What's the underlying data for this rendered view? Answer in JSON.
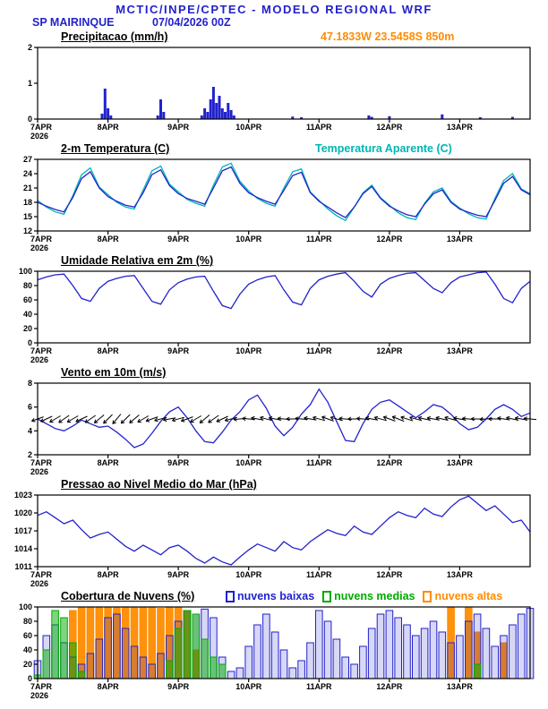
{
  "header": {
    "title": "MCTIC/INPE/CPTEC - MODELO REGIONAL WRF",
    "station": "SP MAIRINQUE",
    "run": "07/04/2026 00Z",
    "location": "47.1833W 23.5458S 850m"
  },
  "colors": {
    "blue": "#2222cc",
    "cyan": "#00b5b5",
    "green": "#00aa00",
    "orange": "#ff8c00",
    "black": "#000000"
  },
  "x_axis": {
    "range_hours": [
      0,
      168
    ],
    "tick_hours": [
      0,
      24,
      48,
      72,
      96,
      120,
      144
    ],
    "tick_labels": [
      "7APR",
      "8APR",
      "9APR",
      "10APR",
      "11APR",
      "12APR",
      "13APR"
    ],
    "year_label": "2026"
  },
  "chart_data": [
    {
      "type": "bar",
      "title": "Precipitacao (mm/h)",
      "ylabel": "mm/h",
      "ylim": [
        0,
        2
      ],
      "yticks": [
        0,
        1,
        2
      ],
      "series": [
        {
          "name": "precipitacao",
          "color": "blue",
          "points": [
            [
              22,
              0.15
            ],
            [
              23,
              0.85
            ],
            [
              24,
              0.3
            ],
            [
              25,
              0.1
            ],
            [
              41,
              0.1
            ],
            [
              42,
              0.55
            ],
            [
              43,
              0.2
            ],
            [
              56,
              0.1
            ],
            [
              57,
              0.3
            ],
            [
              58,
              0.2
            ],
            [
              59,
              0.55
            ],
            [
              60,
              0.9
            ],
            [
              61,
              0.45
            ],
            [
              62,
              0.65
            ],
            [
              63,
              0.3
            ],
            [
              64,
              0.2
            ],
            [
              65,
              0.45
            ],
            [
              66,
              0.25
            ],
            [
              67,
              0.1
            ],
            [
              87,
              0.07
            ],
            [
              90,
              0.05
            ],
            [
              113,
              0.1
            ],
            [
              114,
              0.06
            ],
            [
              120,
              0.08
            ],
            [
              138,
              0.13
            ],
            [
              151,
              0.05
            ],
            [
              162,
              0.06
            ]
          ]
        }
      ]
    },
    {
      "type": "line",
      "title": "2-m Temperatura (C)",
      "extra_label": "Temperatura Aparente (C)",
      "ylim": [
        12,
        27
      ],
      "yticks": [
        12,
        15,
        18,
        21,
        24,
        27
      ],
      "x_step": 3,
      "series": [
        {
          "name": "temperatura-aparente",
          "color": "cyan",
          "values": [
            18.4,
            17.0,
            16.0,
            15.5,
            19.4,
            23.8,
            25.2,
            21.2,
            19.6,
            18.0,
            17.0,
            16.6,
            20.6,
            24.6,
            25.6,
            21.8,
            20.2,
            18.6,
            17.8,
            17.2,
            21.6,
            25.4,
            26.2,
            22.4,
            20.4,
            18.8,
            17.8,
            17.2,
            21.0,
            24.4,
            25.0,
            20.2,
            18.4,
            16.6,
            15.2,
            14.2,
            17.0,
            20.0,
            21.6,
            19.0,
            17.4,
            15.8,
            14.8,
            14.4,
            17.8,
            20.2,
            21.0,
            18.2,
            16.8,
            15.6,
            14.8,
            14.5,
            18.8,
            22.6,
            24.0,
            20.8,
            19.8
          ]
        },
        {
          "name": "temperatura-2m",
          "color": "blue",
          "values": [
            18.0,
            17.2,
            16.5,
            16.0,
            19.0,
            23.0,
            24.4,
            21.0,
            19.2,
            18.2,
            17.4,
            17.0,
            20.0,
            23.8,
            24.8,
            21.5,
            19.8,
            18.8,
            18.2,
            17.6,
            21.0,
            24.6,
            25.4,
            22.0,
            20.0,
            19.0,
            18.2,
            17.6,
            20.5,
            23.6,
            24.3,
            20.0,
            18.2,
            17.0,
            15.8,
            14.8,
            17.0,
            19.8,
            21.3,
            18.8,
            17.2,
            16.2,
            15.4,
            15.0,
            17.6,
            19.8,
            20.6,
            18.0,
            16.6,
            15.9,
            15.3,
            15.0,
            18.4,
            22.0,
            23.4,
            20.6,
            19.6
          ]
        }
      ]
    },
    {
      "type": "line",
      "title": "Umidade Relativa em 2m (%)",
      "ylim": [
        0,
        100
      ],
      "yticks": [
        0,
        20,
        40,
        60,
        80,
        100
      ],
      "x_step": 3,
      "series": [
        {
          "name": "umidade-relativa",
          "color": "blue",
          "values": [
            88,
            92,
            95,
            96,
            80,
            62,
            58,
            76,
            86,
            90,
            93,
            94,
            76,
            58,
            54,
            74,
            84,
            89,
            92,
            93,
            72,
            52,
            48,
            68,
            82,
            88,
            92,
            94,
            74,
            57,
            53,
            76,
            88,
            93,
            96,
            98,
            86,
            72,
            64,
            82,
            90,
            94,
            97,
            98,
            87,
            76,
            70,
            84,
            92,
            95,
            98,
            99,
            82,
            62,
            56,
            76,
            86
          ]
        }
      ]
    },
    {
      "type": "line",
      "title": "Vento em 10m (m/s)",
      "ylim": [
        2,
        8
      ],
      "yticks": [
        2,
        4,
        6,
        8
      ],
      "x_step": 3,
      "series": [
        {
          "name": "vento-10m",
          "color": "blue",
          "values": [
            5.0,
            4.6,
            4.2,
            4.0,
            4.4,
            4.9,
            4.6,
            4.3,
            4.4,
            3.9,
            3.3,
            2.6,
            2.9,
            3.8,
            4.8,
            5.6,
            6.0,
            5.1,
            4.0,
            3.1,
            3.0,
            3.9,
            4.9,
            5.6,
            6.6,
            7.0,
            5.9,
            4.4,
            3.6,
            4.3,
            5.4,
            6.2,
            7.5,
            6.4,
            4.8,
            3.2,
            3.1,
            4.6,
            5.8,
            6.4,
            6.6,
            6.1,
            5.6,
            5.1,
            5.6,
            6.2,
            6.0,
            5.4,
            4.6,
            4.1,
            4.3,
            5.0,
            5.8,
            6.2,
            5.8,
            5.2,
            5.5
          ]
        }
      ],
      "barbs": {
        "name": "direcao-vento",
        "y": 5,
        "step": 3,
        "angles_deg": [
          200,
          205,
          210,
          215,
          210,
          205,
          215,
          220,
          225,
          230,
          225,
          220,
          210,
          200,
          195,
          190,
          195,
          200,
          210,
          220,
          215,
          205,
          195,
          185,
          175,
          170,
          165,
          170,
          175,
          180,
          175,
          170,
          165,
          160,
          165,
          175,
          180,
          175,
          170,
          165,
          160,
          158,
          162,
          165,
          168,
          170,
          168,
          165,
          170,
          175,
          180,
          185,
          180,
          172,
          168,
          170,
          175
        ]
      }
    },
    {
      "type": "line",
      "title": "Pressao ao Nivel Medio do Mar (hPa)",
      "ylim": [
        1011,
        1023
      ],
      "yticks": [
        1011,
        1014,
        1017,
        1020,
        1023
      ],
      "x_step": 3,
      "series": [
        {
          "name": "pressao-nivel-mar",
          "color": "blue",
          "values": [
            1019.6,
            1020.2,
            1019.2,
            1018.2,
            1018.8,
            1017.2,
            1015.8,
            1016.4,
            1016.8,
            1015.6,
            1014.4,
            1013.6,
            1014.6,
            1013.8,
            1013.0,
            1014.2,
            1014.6,
            1013.6,
            1012.4,
            1011.6,
            1012.6,
            1011.8,
            1011.3,
            1012.6,
            1013.8,
            1014.8,
            1014.2,
            1013.6,
            1015.2,
            1014.2,
            1013.8,
            1015.2,
            1016.2,
            1017.2,
            1016.6,
            1016.2,
            1017.8,
            1016.8,
            1016.4,
            1017.8,
            1019.2,
            1020.2,
            1019.6,
            1019.2,
            1020.8,
            1019.8,
            1019.4,
            1021.0,
            1022.2,
            1022.8,
            1021.6,
            1020.4,
            1021.2,
            1019.8,
            1018.4,
            1018.8,
            1016.8
          ]
        }
      ]
    },
    {
      "type": "bar-dense",
      "title": "Cobertura de Nuvens (%)",
      "ylim": [
        0,
        100
      ],
      "yticks": [
        0,
        20,
        40,
        60,
        80,
        100
      ],
      "x_step": 3,
      "legend": [
        {
          "label": "nuvens baixas",
          "color": "blue"
        },
        {
          "label": "nuvens medias",
          "color": "green"
        },
        {
          "label": "nuvens altas",
          "color": "orange"
        }
      ],
      "series": [
        {
          "name": "nuvens-altas",
          "color": "orange",
          "fill_opacity": 0.95,
          "values": [
            0,
            0,
            0,
            0,
            95,
            100,
            100,
            100,
            100,
            100,
            100,
            100,
            100,
            100,
            98,
            100,
            100,
            95,
            40,
            0,
            0,
            0,
            0,
            0,
            0,
            0,
            0,
            0,
            0,
            0,
            0,
            0,
            0,
            0,
            0,
            0,
            0,
            0,
            0,
            0,
            0,
            0,
            0,
            0,
            0,
            0,
            0,
            100,
            0,
            100,
            65,
            0,
            0,
            50,
            0,
            0,
            0
          ]
        },
        {
          "name": "nuvens-baixas",
          "color": "blue",
          "fill_opacity": 0.18,
          "values": [
            25,
            60,
            75,
            50,
            30,
            20,
            35,
            55,
            85,
            90,
            70,
            45,
            30,
            20,
            35,
            60,
            80,
            95,
            90,
            97,
            85,
            30,
            10,
            15,
            45,
            75,
            90,
            65,
            40,
            15,
            25,
            50,
            95,
            80,
            55,
            30,
            20,
            45,
            70,
            90,
            95,
            85,
            75,
            60,
            70,
            80,
            65,
            50,
            60,
            80,
            90,
            70,
            45,
            60,
            75,
            90,
            98
          ]
        },
        {
          "name": "nuvens-medias",
          "color": "green",
          "fill_opacity": 0.5,
          "values": [
            5,
            40,
            95,
            85,
            50,
            10,
            0,
            0,
            0,
            0,
            0,
            0,
            0,
            0,
            0,
            25,
            70,
            95,
            90,
            55,
            30,
            20,
            0,
            0,
            0,
            0,
            0,
            0,
            0,
            0,
            0,
            0,
            0,
            0,
            0,
            0,
            0,
            0,
            0,
            0,
            0,
            0,
            0,
            0,
            0,
            0,
            0,
            0,
            0,
            0,
            20,
            0,
            0,
            0,
            0,
            0,
            0
          ]
        }
      ]
    }
  ]
}
